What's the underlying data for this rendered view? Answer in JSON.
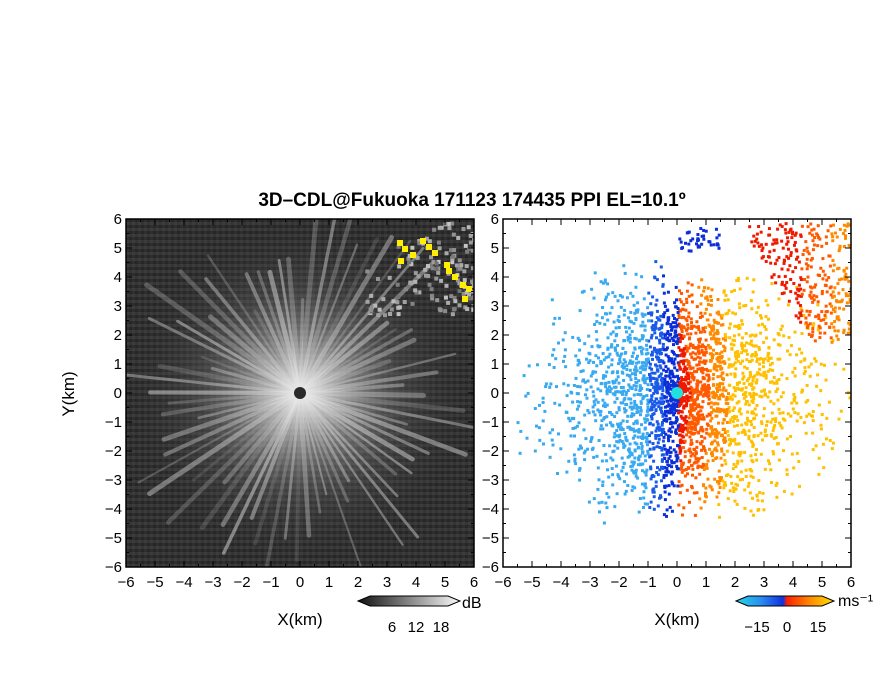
{
  "chart_data": {
    "title": "3D–CDL@Fukuoka 171123 174435 PPI EL=10.1º",
    "ylabel": "Y(km)",
    "panels": [
      {
        "name": "reflectivity",
        "type": "heatmap",
        "xlabel": "X(km)",
        "xlim": [
          -6,
          6
        ],
        "ylim": [
          -6,
          6
        ],
        "x_ticks": [
          "−6",
          "−5",
          "−4",
          "−3",
          "−2",
          "−1",
          "0",
          "1",
          "2",
          "3",
          "4",
          "5",
          "6"
        ],
        "y_ticks": [
          "−6",
          "−5",
          "−4",
          "−3",
          "−2",
          "−1",
          "0",
          "1",
          "2",
          "3",
          "4",
          "5",
          "6"
        ],
        "colorbar": {
          "unit": "dB",
          "ticks": [
            "6",
            "12",
            "18"
          ],
          "colormap": "grayscale",
          "highlight_color": "#ffee00"
        }
      },
      {
        "name": "doppler-velocity",
        "type": "heatmap",
        "xlabel": "X(km)",
        "xlim": [
          -6,
          6
        ],
        "ylim": [
          -6,
          6
        ],
        "x_ticks": [
          "−6",
          "−5",
          "−4",
          "−3",
          "−2",
          "−1",
          "0",
          "1",
          "2",
          "3",
          "4",
          "5",
          "6"
        ],
        "y_ticks": [
          "−6",
          "−5",
          "−4",
          "−3",
          "−2",
          "−1",
          "0",
          "1",
          "2",
          "3",
          "4",
          "5",
          "6"
        ],
        "colorbar": {
          "unit": "ms⁻¹",
          "ticks": [
            "−15",
            "0",
            "15"
          ],
          "colormap": "cyan-blue-red-yellow",
          "vmin": -15,
          "vmax": 15
        }
      }
    ]
  },
  "colors": {
    "left_bg": "#333333",
    "approaching_light": "#3aaaf0",
    "approaching_dark": "#0a2fd8",
    "receding_red": "#ee1a00",
    "receding_orange": "#ff8a00",
    "receding_yellow": "#ffc000",
    "center_marker": "#22e0e0"
  }
}
